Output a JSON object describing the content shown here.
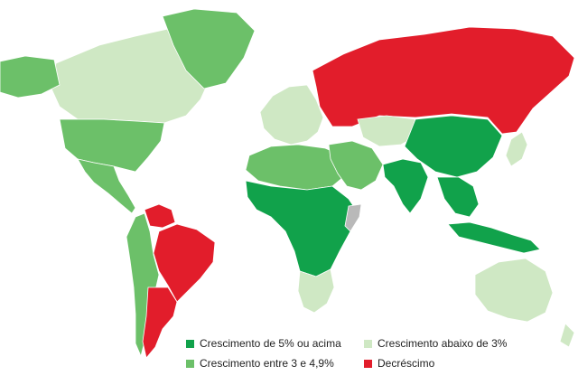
{
  "colors": {
    "strong_growth": "#11a24b",
    "medium_growth": "#6cc069",
    "low_growth": "#cfe8c4",
    "decline": "#e21d2b",
    "no_data": "#b9b9b9"
  },
  "legend": {
    "items": [
      {
        "label": "Crescimento de 5% ou acima",
        "category": "strong_growth"
      },
      {
        "label": "Crescimento entre 3 e 4,9%",
        "category": "medium_growth"
      },
      {
        "label": "Crescimento abaixo de 3%",
        "category": "low_growth"
      },
      {
        "label": "Decréscimo",
        "category": "decline"
      }
    ]
  },
  "regions": [
    {
      "name": "canada",
      "category": "low_growth"
    },
    {
      "name": "greenland",
      "category": "medium_growth"
    },
    {
      "name": "alaska",
      "category": "medium_growth"
    },
    {
      "name": "united-states",
      "category": "medium_growth"
    },
    {
      "name": "mexico-central-america",
      "category": "medium_growth"
    },
    {
      "name": "venezuela",
      "category": "decline"
    },
    {
      "name": "brazil",
      "category": "decline"
    },
    {
      "name": "argentina",
      "category": "decline"
    },
    {
      "name": "andean-countries",
      "category": "medium_growth"
    },
    {
      "name": "western-europe",
      "category": "low_growth"
    },
    {
      "name": "russia",
      "category": "decline"
    },
    {
      "name": "northern-africa",
      "category": "medium_growth"
    },
    {
      "name": "sub-saharan-africa",
      "category": "strong_growth"
    },
    {
      "name": "southern-africa",
      "category": "low_growth"
    },
    {
      "name": "middle-east",
      "category": "medium_growth"
    },
    {
      "name": "central-asia",
      "category": "low_growth"
    },
    {
      "name": "china",
      "category": "strong_growth"
    },
    {
      "name": "india",
      "category": "strong_growth"
    },
    {
      "name": "southeast-asia",
      "category": "strong_growth"
    },
    {
      "name": "indonesia",
      "category": "strong_growth"
    },
    {
      "name": "japan",
      "category": "low_growth"
    },
    {
      "name": "australia",
      "category": "low_growth"
    },
    {
      "name": "somalia",
      "category": "no_data"
    }
  ]
}
